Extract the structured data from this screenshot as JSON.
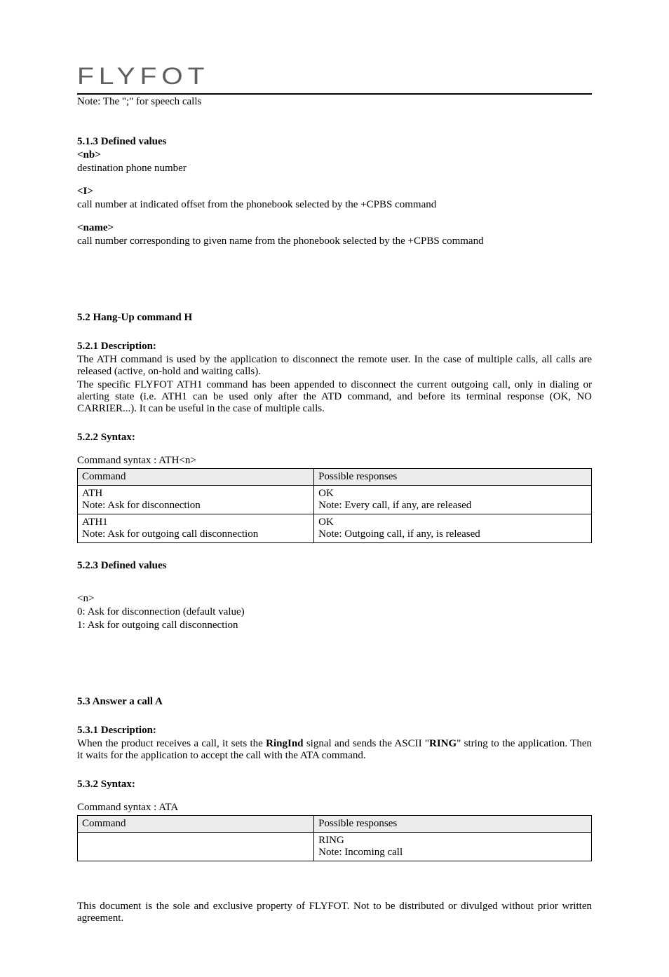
{
  "logo_text": "FLYFOT",
  "note_top": "Note: The \";\" for speech calls",
  "sec_defined_values": {
    "heading": "5.1.3 Defined values",
    "items": [
      {
        "label": "<nb>",
        "desc": "destination phone number"
      },
      {
        "label": "<I>",
        "desc": "call number at indicated offset from the phonebook selected by the +CPBS command"
      },
      {
        "label": "<name>",
        "desc": "call number corresponding to given name from the phonebook selected by the +CPBS command"
      }
    ]
  },
  "sec_hangup": {
    "heading": "5.2 Hang-Up command H",
    "desc_heading": "5.2.1 Description:",
    "desc_p1": "The ATH command is used by the application to disconnect the remote user. In the case of multiple calls, all calls are released (active, on-hold and waiting calls).",
    "desc_p2": "The specific FLYFOT ATH1 command has been appended to disconnect the current outgoing call, only in dialing or alerting state (i.e. ATH1 can be used only after the ATD command, and before its terminal response (OK, NO CARRIER...). It can be useful in the case of multiple calls.",
    "syntax_heading": "5.2.2 Syntax:",
    "syntax_line": "Command syntax : ATH<n>",
    "table": {
      "headers": [
        "Command",
        "Possible responses"
      ],
      "rows": [
        [
          "ATH\nNote: Ask for disconnection",
          "OK\nNote: Every call, if any, are released"
        ],
        [
          "ATH1\nNote: Ask for outgoing call disconnection",
          "OK\nNote: Outgoing call, if any, is released"
        ]
      ]
    },
    "defval_heading": "5.2.3 Defined values",
    "defval_n": "<n>",
    "defval_0": "0: Ask for disconnection (default value)",
    "defval_1": "1: Ask for outgoing call disconnection"
  },
  "sec_answer": {
    "heading": "5.3 Answer a call A",
    "desc_heading": "5.3.1 Description:",
    "desc_prefix": "When the product receives a call, it sets the ",
    "desc_bold1": "RingInd",
    "desc_mid": " signal and sends the ASCII \"",
    "desc_bold2": "RING",
    "desc_suffix": "\" string to the application. Then it waits for the application to accept the call with the ATA command.",
    "syntax_heading": "5.3.2 Syntax:",
    "syntax_line": "Command syntax : ATA",
    "table": {
      "headers": [
        "Command",
        "Possible responses"
      ],
      "rows": [
        [
          "",
          "RING\nNote: Incoming call"
        ]
      ]
    }
  },
  "footer": "This document is the sole and exclusive property of FLYFOT. Not to be distributed or divulged without prior written agreement.",
  "colors": {
    "header_bg": "#ececec",
    "border": "#000000",
    "text": "#000000",
    "logo": "#606060"
  }
}
